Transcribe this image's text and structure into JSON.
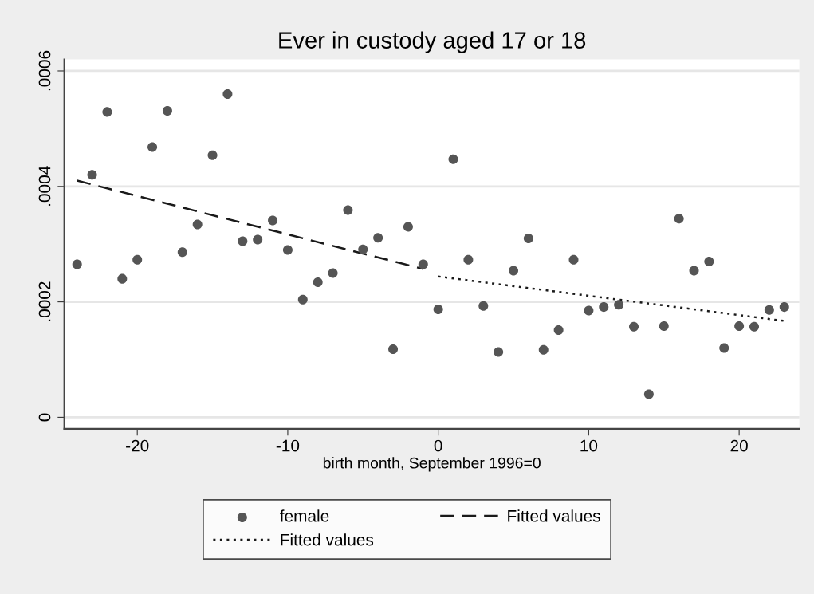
{
  "chart_data": {
    "type": "scatter",
    "title": "Ever in custody aged 17 or 18",
    "xlabel": "birth month, September 1996=0",
    "series": [
      {
        "name": "female",
        "color": "#555555",
        "marker": "circle",
        "x": [
          -24,
          -23,
          -22,
          -21,
          -20,
          -19,
          -18,
          -17,
          -16,
          -15,
          -14,
          -13,
          -12,
          -11,
          -10,
          -9,
          -8,
          -7,
          -6,
          -5,
          -4,
          -3,
          -2,
          -1,
          0,
          1,
          2,
          3,
          4,
          5,
          6,
          7,
          8,
          9,
          10,
          11,
          12,
          13,
          14,
          15,
          16,
          17,
          18,
          19,
          20,
          21,
          22,
          23
        ],
        "values": [
          0.000265,
          0.00042,
          0.000529,
          0.00024,
          0.000273,
          0.000468,
          0.000531,
          0.000286,
          0.000334,
          0.000454,
          0.00056,
          0.000305,
          0.000308,
          0.000341,
          0.00029,
          0.000204,
          0.000234,
          0.00025,
          0.000359,
          0.000291,
          0.000311,
          0.000118,
          0.00033,
          0.000265,
          0.000187,
          0.000447,
          0.000273,
          0.000193,
          0.000113,
          0.000254,
          0.00031,
          0.000117,
          0.000151,
          0.000273,
          0.000185,
          0.000191,
          0.000195,
          0.000157,
          4e-05,
          0.000158,
          0.000344,
          0.000254,
          0.00027,
          0.00012,
          0.000158,
          0.000157,
          0.000186,
          0.000191
        ]
      },
      {
        "name": "Fitted values",
        "type": "line",
        "color": "#1a1a1a",
        "line_style": "dashed",
        "x": [
          -24,
          -1
        ],
        "values": [
          0.00041,
          0.000257
        ]
      },
      {
        "name": "Fitted values",
        "type": "line",
        "color": "#1a1a1a",
        "line_style": "dotted",
        "x": [
          0,
          23
        ],
        "values": [
          0.000244,
          0.000167
        ]
      }
    ],
    "xlim": [
      -24.85,
      24
    ],
    "ylim": [
      -2e-05,
      0.00062
    ],
    "xticks": [
      -20,
      -10,
      0,
      10,
      20
    ],
    "yticks": [
      {
        "value": 0,
        "label": "0"
      },
      {
        "value": 0.0002,
        "label": ".0002"
      },
      {
        "value": 0.0004,
        "label": ".0004"
      },
      {
        "value": 0.0006,
        "label": ".0006"
      }
    ],
    "grid": "y",
    "legend": "bottom"
  }
}
